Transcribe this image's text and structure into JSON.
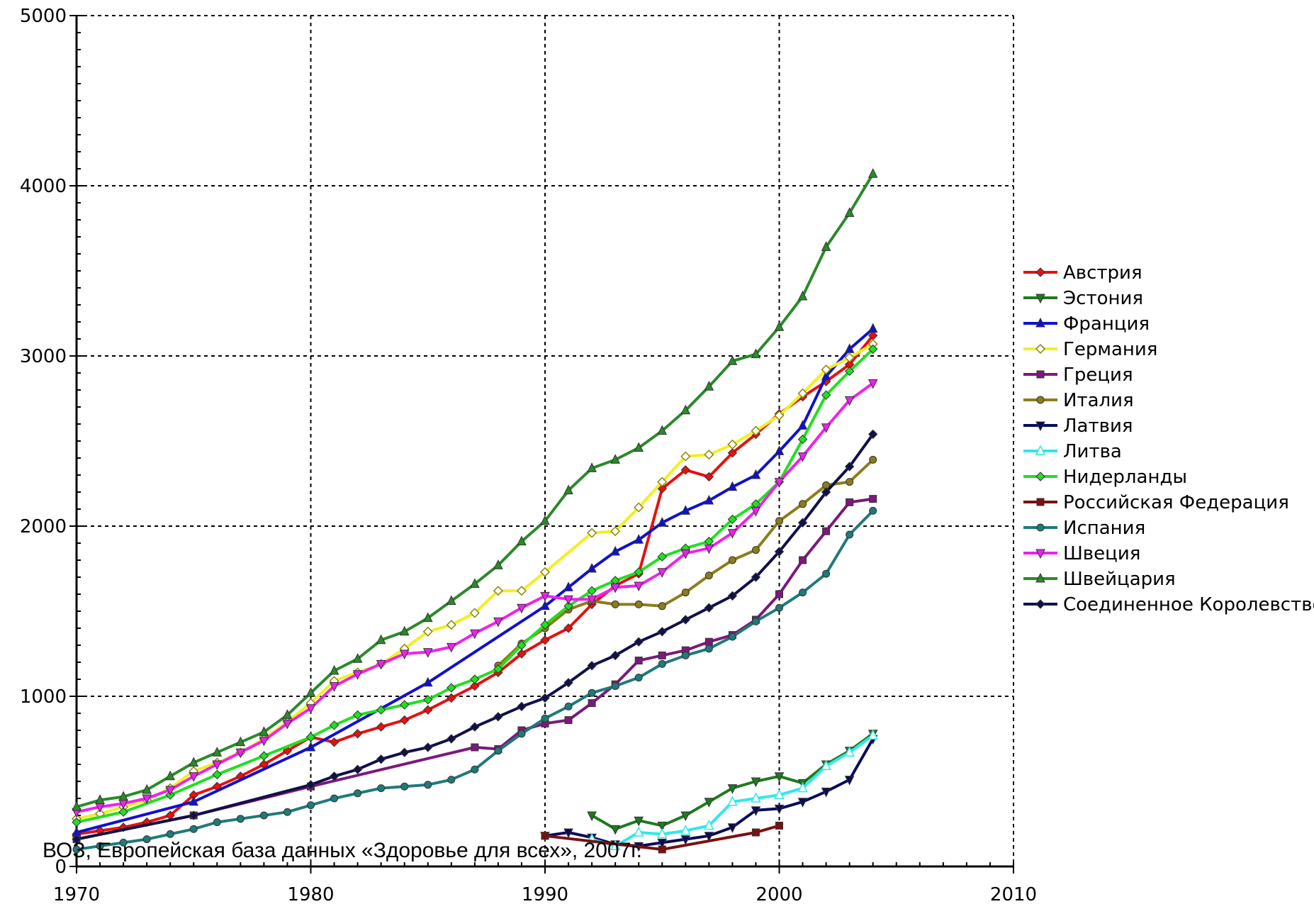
{
  "chart_data": {
    "type": "line",
    "title": "",
    "xlabel": "",
    "ylabel": "",
    "xlim": [
      1970,
      2010
    ],
    "ylim": [
      0,
      5000
    ],
    "x_ticks": [
      1970,
      1980,
      1990,
      2000,
      2010
    ],
    "y_ticks": [
      0,
      1000,
      2000,
      3000,
      4000,
      5000
    ],
    "grid": true,
    "legend_position": "right",
    "series": [
      {
        "name": "Австрия",
        "color": "#e81010",
        "marker": "diamond",
        "x": [
          1970,
          1971,
          1972,
          1973,
          1974,
          1975,
          1976,
          1977,
          1978,
          1979,
          1980,
          1981,
          1982,
          1983,
          1984,
          1985,
          1986,
          1987,
          1988,
          1989,
          1990,
          1991,
          1992,
          1993,
          1994,
          1995,
          1996,
          1997,
          1998,
          1999,
          2000,
          2001,
          2002,
          2003,
          2004
        ],
        "y": [
          190,
          210,
          230,
          260,
          300,
          420,
          470,
          530,
          600,
          680,
          760,
          730,
          780,
          820,
          860,
          920,
          990,
          1060,
          1140,
          1250,
          1330,
          1400,
          1540,
          1650,
          1720,
          2220,
          2330,
          2290,
          2430,
          2540,
          2660,
          2760,
          2850,
          2950,
          3120
        ]
      },
      {
        "name": "Эстония",
        "color": "#1f7a1f",
        "marker": "triangle-down",
        "x": [
          1992,
          1993,
          1994,
          1995,
          1996,
          1997,
          1998,
          1999,
          2000,
          2001,
          2002,
          2003,
          2004
        ],
        "y": [
          300,
          220,
          270,
          240,
          300,
          380,
          460,
          500,
          530,
          490,
          600,
          680,
          780
        ]
      },
      {
        "name": "Франция",
        "color": "#1010d0",
        "marker": "triangle-up",
        "x": [
          1970,
          1975,
          1980,
          1985,
          1990,
          1991,
          1992,
          1993,
          1994,
          1995,
          1996,
          1997,
          1998,
          1999,
          2000,
          2001,
          2002,
          2003,
          2004
        ],
        "y": [
          200,
          380,
          700,
          1080,
          1530,
          1640,
          1750,
          1850,
          1920,
          2020,
          2090,
          2150,
          2230,
          2300,
          2440,
          2590,
          2880,
          3040,
          3160
        ]
      },
      {
        "name": "Германия",
        "color": "#f0f020",
        "marker": "diamond-open",
        "x": [
          1970,
          1971,
          1972,
          1973,
          1974,
          1975,
          1976,
          1977,
          1978,
          1979,
          1980,
          1981,
          1982,
          1983,
          1984,
          1985,
          1986,
          1987,
          1988,
          1989,
          1990,
          1992,
          1993,
          1994,
          1995,
          1996,
          1997,
          1998,
          1999,
          2000,
          2001,
          2002,
          2003,
          2004
        ],
        "y": [
          280,
          310,
          350,
          390,
          460,
          560,
          610,
          670,
          750,
          850,
          960,
          1090,
          1140,
          1190,
          1280,
          1380,
          1420,
          1490,
          1620,
          1620,
          1730,
          1960,
          1970,
          2110,
          2260,
          2410,
          2420,
          2480,
          2560,
          2650,
          2780,
          2920,
          2990,
          3070
        ]
      },
      {
        "name": "Греция",
        "color": "#7a1a7a",
        "marker": "square",
        "x": [
          1970,
          1975,
          1980,
          1987,
          1988,
          1989,
          1990,
          1991,
          1992,
          1993,
          1994,
          1995,
          1996,
          1997,
          1998,
          1999,
          2000,
          2001,
          2002,
          2003,
          2004
        ],
        "y": [
          160,
          300,
          470,
          700,
          690,
          800,
          840,
          860,
          960,
          1070,
          1210,
          1240,
          1270,
          1320,
          1360,
          1450,
          1600,
          1800,
          1970,
          2140,
          2160
        ]
      },
      {
        "name": "Италия",
        "color": "#8b7d1a",
        "marker": "circle",
        "x": [
          1988,
          1989,
          1990,
          1991,
          1992,
          1993,
          1994,
          1995,
          1996,
          1997,
          1998,
          1999,
          2000,
          2001,
          2002,
          2003,
          2004
        ],
        "y": [
          1180,
          1310,
          1400,
          1510,
          1560,
          1540,
          1540,
          1530,
          1610,
          1710,
          1800,
          1860,
          2030,
          2130,
          2240,
          2260,
          2390
        ]
      },
      {
        "name": "Латвия",
        "color": "#0a0a5a",
        "marker": "triangle-down",
        "x": [
          1990,
          1991,
          1992,
          1993,
          1994,
          1995,
          1996,
          1997,
          1998,
          1999,
          2000,
          2001,
          2002,
          2003,
          2004
        ],
        "y": [
          180,
          200,
          170,
          130,
          120,
          140,
          160,
          180,
          230,
          330,
          340,
          380,
          440,
          510,
          750
        ]
      },
      {
        "name": "Литва",
        "color": "#30e8e8",
        "marker": "triangle-open",
        "x": [
          1992,
          1993,
          1994,
          1995,
          1996,
          1997,
          1998,
          1999,
          2000,
          2001,
          2002,
          2003,
          2004
        ],
        "y": [
          160,
          120,
          200,
          190,
          210,
          240,
          380,
          400,
          420,
          460,
          590,
          670,
          770
        ]
      },
      {
        "name": "Нидерланды",
        "color": "#20e020",
        "marker": "diamond",
        "x": [
          1970,
          1972,
          1974,
          1976,
          1978,
          1980,
          1981,
          1982,
          1983,
          1984,
          1985,
          1986,
          1987,
          1988,
          1989,
          1990,
          1991,
          1992,
          1993,
          1994,
          1995,
          1996,
          1997,
          1998,
          1999,
          2000,
          2001,
          2002,
          2003,
          2004
        ],
        "y": [
          260,
          320,
          420,
          540,
          650,
          760,
          830,
          890,
          920,
          950,
          980,
          1050,
          1100,
          1160,
          1300,
          1420,
          1530,
          1620,
          1680,
          1730,
          1820,
          1870,
          1910,
          2040,
          2130,
          2260,
          2510,
          2770,
          2910,
          3040
        ]
      },
      {
        "name": "Российская Федерация",
        "color": "#7a1010",
        "marker": "square",
        "x": [
          1990,
          1995,
          1999,
          2000
        ],
        "y": [
          180,
          100,
          200,
          240
        ]
      },
      {
        "name": "Испания",
        "color": "#1f7a7a",
        "marker": "circle",
        "x": [
          1970,
          1971,
          1972,
          1973,
          1974,
          1975,
          1976,
          1977,
          1978,
          1979,
          1980,
          1981,
          1982,
          1983,
          1984,
          1985,
          1986,
          1987,
          1988,
          1989,
          1990,
          1991,
          1992,
          1993,
          1994,
          1995,
          1996,
          1997,
          1998,
          1999,
          2000,
          2001,
          2002,
          2003,
          2004
        ],
        "y": [
          100,
          120,
          140,
          160,
          190,
          220,
          260,
          280,
          300,
          320,
          360,
          400,
          430,
          460,
          470,
          480,
          510,
          570,
          680,
          780,
          870,
          940,
          1020,
          1060,
          1110,
          1190,
          1240,
          1280,
          1350,
          1440,
          1520,
          1610,
          1720,
          1950,
          2090
        ]
      },
      {
        "name": "Швеция",
        "color": "#f020f0",
        "marker": "triangle-down",
        "x": [
          1970,
          1971,
          1972,
          1973,
          1974,
          1975,
          1976,
          1977,
          1978,
          1979,
          1980,
          1981,
          1982,
          1983,
          1984,
          1985,
          1986,
          1987,
          1988,
          1989,
          1990,
          1991,
          1992,
          1993,
          1994,
          1995,
          1996,
          1997,
          1998,
          1999,
          2000,
          2001,
          2002,
          2003,
          2004
        ],
        "y": [
          320,
          350,
          370,
          400,
          450,
          530,
          600,
          670,
          740,
          840,
          930,
          1060,
          1130,
          1190,
          1250,
          1260,
          1290,
          1370,
          1440,
          1520,
          1590,
          1570,
          1570,
          1640,
          1650,
          1730,
          1840,
          1870,
          1960,
          2090,
          2260,
          2410,
          2580,
          2740,
          2840
        ]
      },
      {
        "name": "Швейцария",
        "color": "#2a8a2a",
        "marker": "triangle-up",
        "x": [
          1970,
          1971,
          1972,
          1973,
          1974,
          1975,
          1976,
          1977,
          1978,
          1979,
          1980,
          1981,
          1982,
          1983,
          1984,
          1985,
          1986,
          1987,
          1988,
          1989,
          1990,
          1991,
          1992,
          1993,
          1994,
          1995,
          1996,
          1997,
          1998,
          1999,
          2000,
          2001,
          2002,
          2003,
          2004
        ],
        "y": [
          350,
          390,
          410,
          450,
          530,
          610,
          670,
          730,
          790,
          890,
          1020,
          1150,
          1220,
          1330,
          1380,
          1460,
          1560,
          1660,
          1770,
          1910,
          2030,
          2210,
          2340,
          2390,
          2460,
          2560,
          2680,
          2820,
          2970,
          3010,
          3170,
          3350,
          3640,
          3840,
          4070
        ]
      },
      {
        "name": "Соединенное Королевство",
        "color": "#10104a",
        "marker": "diamond",
        "x": [
          1970,
          1975,
          1980,
          1981,
          1982,
          1983,
          1984,
          1985,
          1986,
          1987,
          1988,
          1989,
          1990,
          1991,
          1992,
          1993,
          1994,
          1995,
          1996,
          1997,
          1998,
          1999,
          2000,
          2001,
          2002,
          2003,
          2004
        ],
        "y": [
          160,
          300,
          480,
          530,
          570,
          630,
          670,
          700,
          750,
          820,
          880,
          940,
          990,
          1080,
          1180,
          1240,
          1320,
          1380,
          1450,
          1520,
          1590,
          1700,
          1850,
          2020,
          2200,
          2350,
          2540
        ]
      }
    ]
  },
  "source_note": "ВОЗ, Европейская база данных «Здоровье для всех», 2007г."
}
